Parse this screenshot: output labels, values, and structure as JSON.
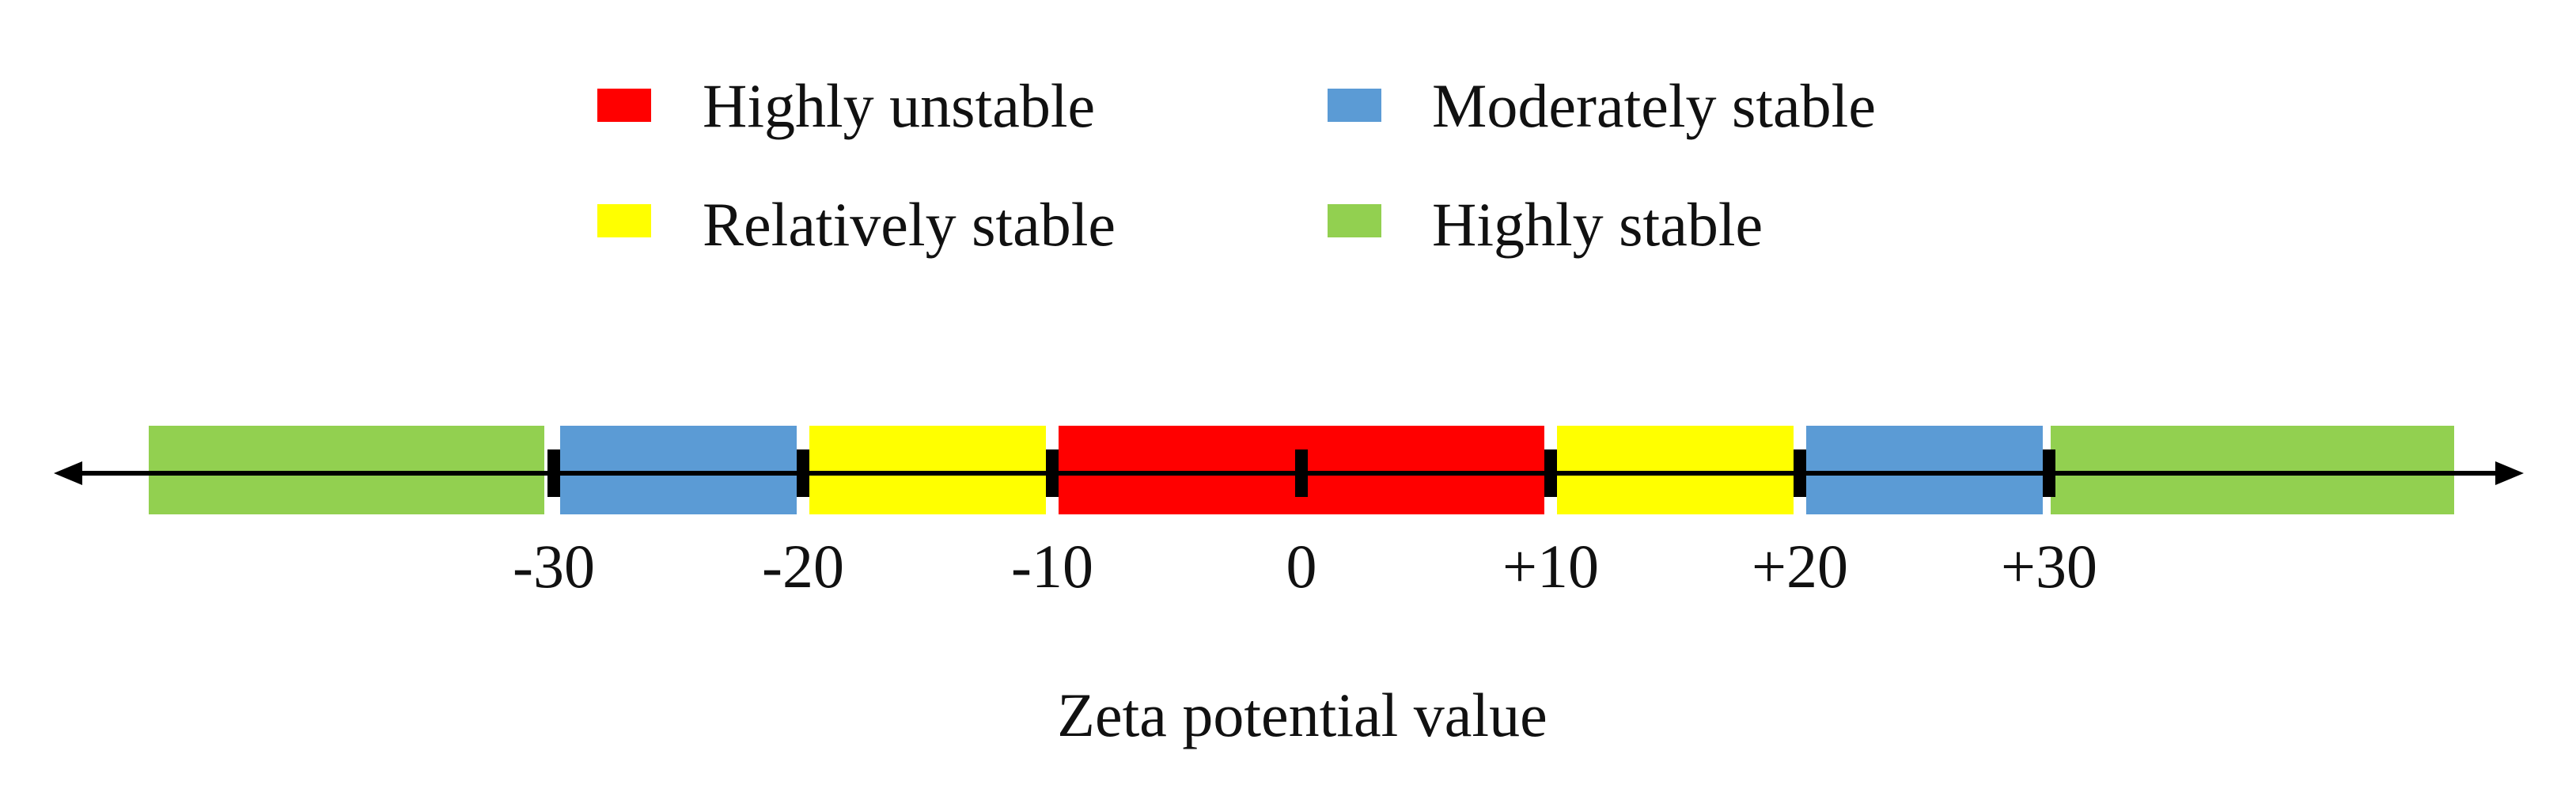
{
  "legend": [
    {
      "label": "Highly unstable",
      "color": "#ff0000"
    },
    {
      "label": "Moderately stable",
      "color": "#5b9bd5"
    },
    {
      "label": "Relatively stable",
      "color": "#ffff00"
    },
    {
      "label": "Highly stable",
      "color": "#92d050"
    }
  ],
  "scale": {
    "x_title": "Zeta potential value",
    "ticks": [
      {
        "value": -30,
        "label": "-30"
      },
      {
        "value": -20,
        "label": "-20"
      },
      {
        "value": -10,
        "label": "-10"
      },
      {
        "value": 0,
        "label": "0"
      },
      {
        "value": 10,
        "label": "+10"
      },
      {
        "value": 20,
        "label": "+20"
      },
      {
        "value": 30,
        "label": "+30"
      }
    ],
    "bands": [
      {
        "from": null,
        "to": -30,
        "category": "Highly stable",
        "color": "#92d050"
      },
      {
        "from": -30,
        "to": -20,
        "category": "Moderately stable",
        "color": "#5b9bd5"
      },
      {
        "from": -20,
        "to": -10,
        "category": "Relatively stable",
        "color": "#ffff00"
      },
      {
        "from": -10,
        "to": 10,
        "category": "Highly unstable",
        "color": "#ff0000"
      },
      {
        "from": 10,
        "to": 20,
        "category": "Relatively stable",
        "color": "#ffff00"
      },
      {
        "from": 20,
        "to": 30,
        "category": "Moderately stable",
        "color": "#5b9bd5"
      },
      {
        "from": 30,
        "to": null,
        "category": "Highly stable",
        "color": "#92d050"
      }
    ],
    "axis_color": "#000000"
  }
}
